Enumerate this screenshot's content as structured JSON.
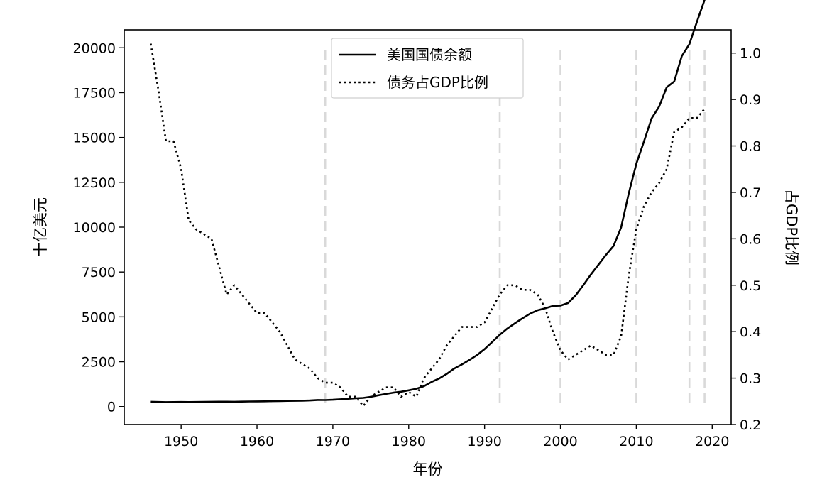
{
  "chart_data": {
    "type": "line",
    "xlabel": "年份",
    "ylabel_left": "十亿美元",
    "ylabel_right": "占GDP比例",
    "xlim": [
      1942.5,
      2022.5
    ],
    "ylim_left": [
      -1000,
      21000
    ],
    "ylim_right": [
      0.2,
      1.05
    ],
    "x_ticks": [
      1950,
      1960,
      1970,
      1980,
      1990,
      2000,
      2010,
      2020
    ],
    "y_ticks_left": [
      0,
      2500,
      5000,
      7500,
      10000,
      12500,
      15000,
      17500,
      20000
    ],
    "y_ticks_right": [
      0.2,
      0.3,
      0.4,
      0.5,
      0.6,
      0.7,
      0.8,
      0.9,
      1.0
    ],
    "grid": false,
    "legend_position": "top-center",
    "vertical_reference_lines": [
      1969,
      1992,
      2000,
      2010,
      2017,
      2019
    ],
    "colors": {
      "debt": "#000000",
      "ratio": "#000000",
      "reference_lines": "#d9d9d9"
    },
    "series": [
      {
        "name": "美国国债余额",
        "axis": "left",
        "style": "solid",
        "x": [
          1946,
          1947,
          1948,
          1949,
          1950,
          1951,
          1952,
          1953,
          1954,
          1955,
          1956,
          1957,
          1958,
          1959,
          1960,
          1961,
          1962,
          1963,
          1964,
          1965,
          1966,
          1967,
          1968,
          1969,
          1970,
          1971,
          1972,
          1973,
          1974,
          1975,
          1976,
          1977,
          1978,
          1979,
          1980,
          1981,
          1982,
          1983,
          1984,
          1985,
          1986,
          1987,
          1988,
          1989,
          1990,
          1991,
          1992,
          1993,
          1994,
          1995,
          1996,
          1997,
          1998,
          1999,
          2000,
          2001,
          2002,
          2003,
          2004,
          2005,
          2006,
          2007,
          2008,
          2009,
          2010,
          2011,
          2012,
          2013,
          2014,
          2015,
          2016,
          2017,
          2018,
          2019
        ],
        "values": [
          271,
          257,
          252,
          253,
          257,
          255,
          259,
          266,
          271,
          274,
          273,
          272,
          280,
          287,
          291,
          293,
          303,
          310,
          316,
          322,
          328,
          340,
          368,
          365,
          381,
          408,
          436,
          466,
          484,
          542,
          629,
          706,
          776,
          829,
          909,
          995,
          1137,
          1372,
          1565,
          1818,
          2121,
          2346,
          2601,
          2868,
          3206,
          3598,
          4002,
          4351,
          4643,
          4921,
          5181,
          5369,
          5478,
          5606,
          5629,
          5770,
          6198,
          6760,
          7355,
          7905,
          8451,
          8951,
          9986,
          11876,
          13529,
          14764,
          16051,
          16719,
          17794,
          18120,
          19539,
          20205,
          21462,
          22669
        ]
      },
      {
        "name": "债务占GDP比例",
        "axis": "right",
        "style": "dotted",
        "x": [
          1946,
          1947,
          1948,
          1949,
          1950,
          1951,
          1952,
          1953,
          1954,
          1955,
          1956,
          1957,
          1958,
          1959,
          1960,
          1961,
          1962,
          1963,
          1964,
          1965,
          1966,
          1967,
          1968,
          1969,
          1970,
          1971,
          1972,
          1973,
          1974,
          1975,
          1976,
          1977,
          1978,
          1979,
          1980,
          1981,
          1982,
          1983,
          1984,
          1985,
          1986,
          1987,
          1988,
          1989,
          1990,
          1991,
          1992,
          1993,
          1994,
          1995,
          1996,
          1997,
          1998,
          1999,
          2000,
          2001,
          2002,
          2003,
          2004,
          2005,
          2006,
          2007,
          2008,
          2009,
          2010,
          2011,
          2012,
          2013,
          2014,
          2015,
          2016,
          2017,
          2018,
          2019
        ],
        "values": [
          1.02,
          0.92,
          0.81,
          0.81,
          0.75,
          0.64,
          0.62,
          0.61,
          0.6,
          0.54,
          0.48,
          0.5,
          0.48,
          0.46,
          0.44,
          0.44,
          0.42,
          0.4,
          0.37,
          0.34,
          0.33,
          0.32,
          0.3,
          0.29,
          0.29,
          0.28,
          0.26,
          0.26,
          0.24,
          0.26,
          0.27,
          0.28,
          0.28,
          0.26,
          0.27,
          0.26,
          0.3,
          0.32,
          0.34,
          0.37,
          0.39,
          0.41,
          0.41,
          0.41,
          0.42,
          0.45,
          0.48,
          0.5,
          0.5,
          0.49,
          0.49,
          0.48,
          0.45,
          0.4,
          0.36,
          0.34,
          0.35,
          0.36,
          0.37,
          0.36,
          0.35,
          0.35,
          0.39,
          0.52,
          0.62,
          0.67,
          0.7,
          0.72,
          0.75,
          0.83,
          0.84,
          0.86,
          0.86,
          0.88
        ]
      }
    ]
  }
}
